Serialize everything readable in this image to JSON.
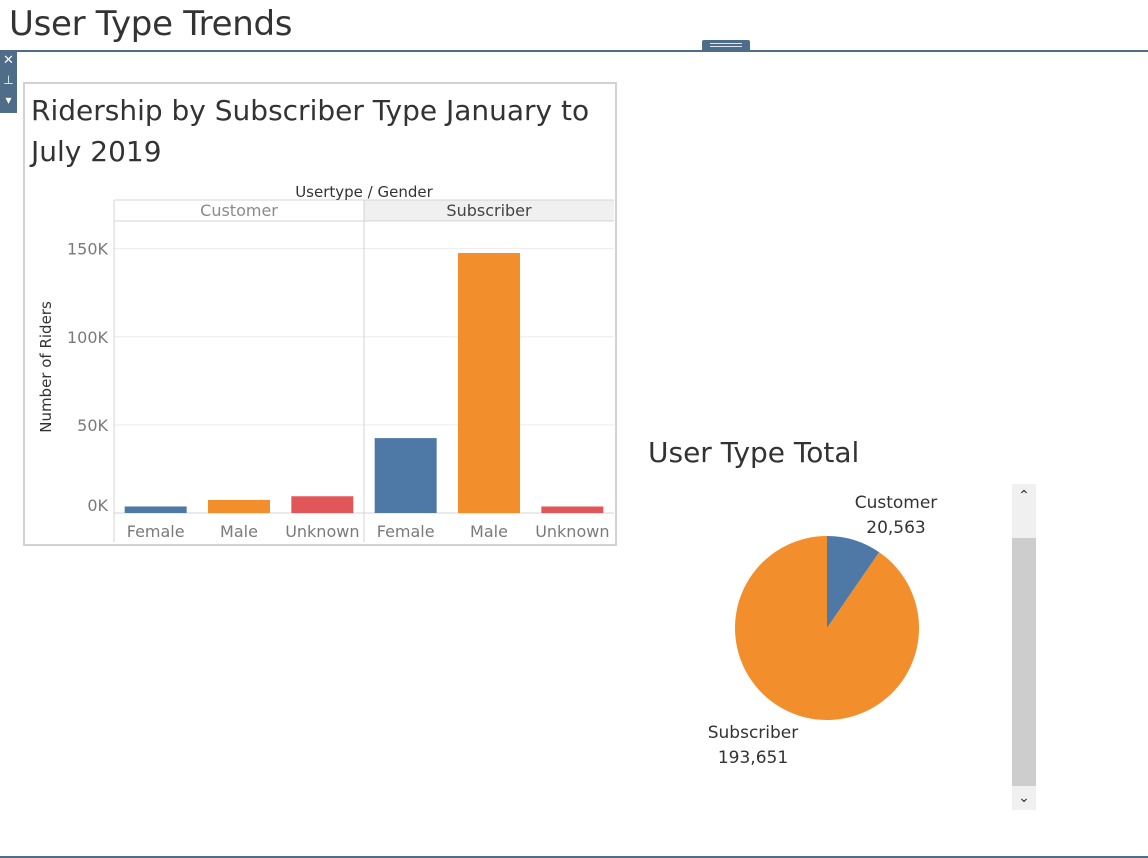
{
  "page": {
    "title": "User Type Trends"
  },
  "toolbar": {
    "close_glyph": "✕",
    "pin_glyph": "⊥",
    "menu_glyph": "▾"
  },
  "scrollbar": {
    "up_glyph": "⌃",
    "down_glyph": "⌄"
  },
  "colors": {
    "female": "#4e79a7",
    "male": "#f28e2b",
    "unknown": "#e15759",
    "header_bg": "#f0f0f0",
    "frame": "#4f6d88"
  },
  "charts": {
    "bar": {
      "title": "Ridership by Subscriber Type January to July 2019",
      "header": "Usertype / Gender",
      "ylabel": "Number of Riders"
    },
    "pie": {
      "title": "User Type Total"
    }
  },
  "chart_data": [
    {
      "type": "bar",
      "title": "Ridership by Subscriber Type January to July 2019",
      "xlabel": "Usertype / Gender",
      "ylabel": "Number of Riders",
      "ylim": [
        0,
        160000
      ],
      "yticks": [
        {
          "value": 0,
          "label": "0K"
        },
        {
          "value": 50000,
          "label": "50K"
        },
        {
          "value": 100000,
          "label": "100K"
        },
        {
          "value": 150000,
          "label": "150K"
        }
      ],
      "groups": [
        {
          "name": "Customer",
          "categories": [
            "Female",
            "Male",
            "Unknown"
          ],
          "values": [
            3700,
            7400,
            9500
          ]
        },
        {
          "name": "Subscriber",
          "categories": [
            "Female",
            "Male",
            "Unknown"
          ],
          "values": [
            42500,
            147500,
            3700
          ]
        }
      ],
      "highlighted_group": "Subscriber",
      "color_by_category": {
        "Female": "#4e79a7",
        "Male": "#f28e2b",
        "Unknown": "#e15759"
      },
      "grid": true
    },
    {
      "type": "pie",
      "title": "User Type Total",
      "slices": [
        {
          "label": "Customer",
          "value": 20563,
          "value_label": "20,563",
          "color": "#4e79a7"
        },
        {
          "label": "Subscriber",
          "value": 193651,
          "value_label": "193,651",
          "color": "#f28e2b"
        }
      ]
    }
  ]
}
